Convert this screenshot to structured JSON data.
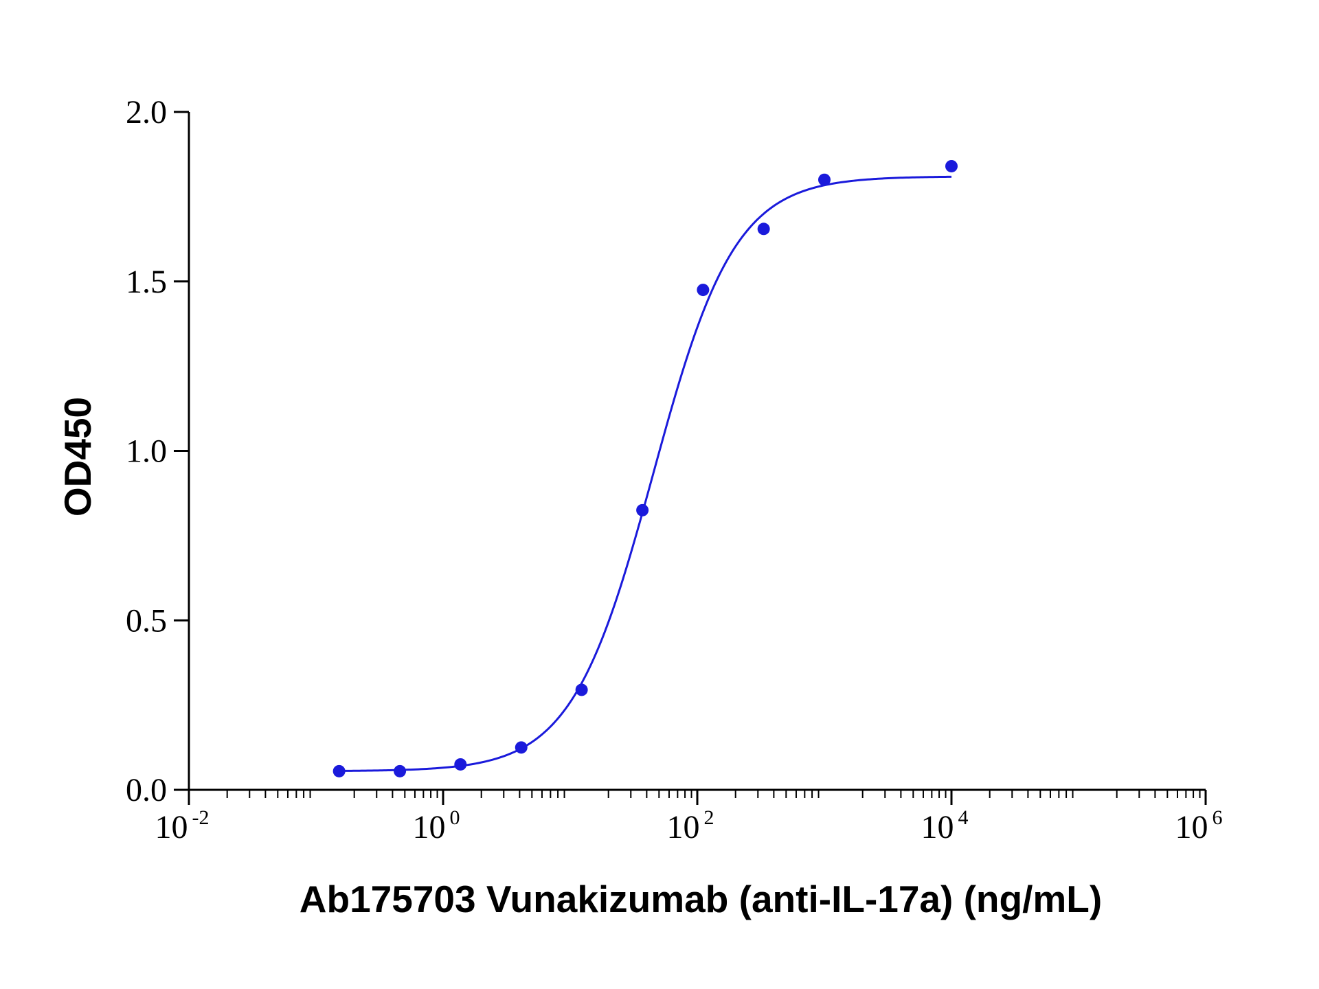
{
  "chart_data": {
    "type": "scatter",
    "xlabel": "Ab175703 Vunakizumab (anti-IL-17a) (ng/mL)",
    "ylabel": "OD450",
    "x_scale": "log",
    "xlim": [
      0.01,
      1000000
    ],
    "ylim": [
      0,
      2.0
    ],
    "x_ticks": [
      {
        "base": "10",
        "exp": "-2"
      },
      {
        "base": "10",
        "exp": "0"
      },
      {
        "base": "10",
        "exp": "2"
      },
      {
        "base": "10",
        "exp": "4"
      },
      {
        "base": "10",
        "exp": "6"
      }
    ],
    "y_ticks": [
      "0.0",
      "0.5",
      "1.0",
      "1.5",
      "2.0"
    ],
    "grid": false,
    "color": "#1a1adb",
    "points": [
      {
        "x": 0.152,
        "y": 0.055
      },
      {
        "x": 0.457,
        "y": 0.055
      },
      {
        "x": 1.37,
        "y": 0.075
      },
      {
        "x": 4.12,
        "y": 0.125
      },
      {
        "x": 12.3,
        "y": 0.295
      },
      {
        "x": 37.0,
        "y": 0.825
      },
      {
        "x": 111,
        "y": 1.475
      },
      {
        "x": 333,
        "y": 1.655
      },
      {
        "x": 1000,
        "y": 1.8
      },
      {
        "x": 10000,
        "y": 1.84
      }
    ],
    "fit": {
      "model": "4PL",
      "bottom": 0.055,
      "top": 1.81,
      "ec50": 45,
      "hill": 1.35,
      "x_range": [
        0.152,
        10000
      ]
    }
  }
}
